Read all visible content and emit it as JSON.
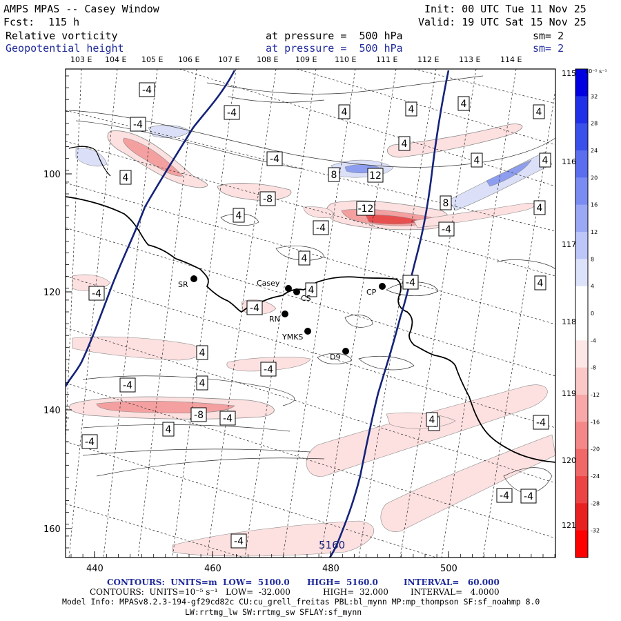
{
  "header": {
    "title": "AMPS MPAS -- Casey Window",
    "fcst_label": "Fcst:",
    "fcst_value": "115 h",
    "init": "Init: 00 UTC Tue 11 Nov 25",
    "valid": "Valid: 19 UTC Sat 15 Nov 25",
    "field1": "Relative vorticity",
    "field1_level": "at pressure =  500 hPa",
    "field1_sm": "sm= 2",
    "field2": "Geopotential height",
    "field2_level": "at pressure =  500 hPa",
    "field2_sm": "sm= 2"
  },
  "map": {
    "top_lon_labels": [
      "103 E",
      "104 E",
      "105 E",
      "106 E",
      "107 E",
      "108 E",
      "109 E",
      "110 E",
      "111 E",
      "112 E",
      "113 E",
      "114 E"
    ],
    "right_lon_labels": [
      "115 E",
      "116 E",
      "117 E",
      "118 E",
      "119 E",
      "120 E",
      "121 E"
    ],
    "y_ticks": [
      "100",
      "120",
      "140",
      "160"
    ],
    "x_ticks": [
      "440",
      "460",
      "480",
      "500"
    ],
    "height_contour_label": "5160",
    "vort_labels": [
      "-4",
      "-4",
      "4",
      "4",
      "4",
      "4",
      "4",
      "-4",
      "4",
      "4",
      "4",
      "8",
      "12",
      "-8",
      "-12",
      "8",
      "4",
      "-4",
      "-4",
      "4",
      "4",
      "-4",
      "4",
      "-4",
      "-4",
      "4",
      "4",
      "-4",
      "-4",
      "4",
      "-4",
      "4",
      "-8",
      "-4",
      "4",
      "-4",
      "-4",
      "-4",
      "-4",
      "4",
      "-4"
    ],
    "stations": [
      {
        "name": "SR"
      },
      {
        "name": "Casey"
      },
      {
        "name": "CS"
      },
      {
        "name": "CP"
      },
      {
        "name": "RN"
      },
      {
        "name": "YMKS"
      },
      {
        "name": "D9"
      }
    ],
    "colors": {
      "height_contour": "#14237a",
      "coast": "#000000",
      "pos_light": "#dbe0f8",
      "pos_mid": "#8d9ef0",
      "neg_light": "#fde0e0",
      "neg_mid": "#f4a0a0",
      "neg_strong": "#e85050"
    }
  },
  "colorbar": {
    "unit": "10⁻⁵ s⁻¹",
    "tick_labels": [
      "32",
      "28",
      "24",
      "20",
      "16",
      "12",
      "8",
      "4",
      "0",
      "-4",
      "-8",
      "-12",
      "-16",
      "-20",
      "-24",
      "-28",
      "-32"
    ],
    "colors": [
      "#0000e0",
      "#2030e8",
      "#3a50ea",
      "#5a6ef0",
      "#7a8cf2",
      "#9aa8f5",
      "#bcc6f8",
      "#dde2fb",
      "#ffffff",
      "#ffffff",
      "#fde6e6",
      "#fbc8c8",
      "#f8a8a8",
      "#f48888",
      "#f06868",
      "#ec4444",
      "#e82020",
      "#ff0000"
    ]
  },
  "footer": {
    "line1_a": "CONTOURS:  UNITS=m  LOW=  5100.0",
    "line1_b": "HIGH=  5160.0",
    "line1_c": "INTERVAL=   60.000",
    "line2_a": "CONTOURS:  UNITS=10⁻⁵ s⁻¹   LOW=  -32.000",
    "line2_b": "HIGH=  32.000",
    "line2_c": "INTERVAL=   4.0000",
    "line3": "Model Info: MPASv8.2.3-194-gf29cd82c CU:cu_grell_freitas PBL:bl_mynn MP:mp_thompson SF:sf_noahmp 8.0",
    "line4": "LW:rrtmg_lw SW:rrtmg_sw SFLAY:sf_mynn"
  }
}
